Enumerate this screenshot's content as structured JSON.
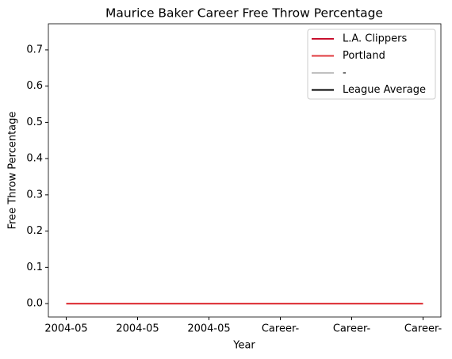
{
  "chart_data": {
    "type": "line",
    "title": "Maurice Baker Career Free Throw Percentage",
    "x_label": "Year",
    "y_label": "Free Throw Percentage",
    "categories": [
      "2004-05",
      "2004-05",
      "2004-05",
      "Career-",
      "Career-",
      "Career-"
    ],
    "series": [
      {
        "name": "L.A. Clippers",
        "color": "#c8102e",
        "values": [
          0,
          0,
          0,
          0,
          0,
          0
        ]
      },
      {
        "name": "Portland",
        "color": "#e03a3e",
        "values": [
          0,
          0,
          0,
          0,
          0,
          0
        ]
      },
      {
        "name": "-",
        "color": "#c0c0c0",
        "values": [
          null,
          null,
          null,
          null,
          null,
          null
        ]
      },
      {
        "name": "League Average",
        "color": "#000000",
        "values": [
          null,
          null,
          null,
          null,
          null,
          null
        ]
      }
    ],
    "ylim": [
      -0.037,
      0.772
    ],
    "yticks": [
      {
        "value": 0,
        "label": "0.0"
      },
      0.1,
      0.2,
      0.3,
      0.4,
      0.5,
      0.6,
      0.7
    ],
    "grid": false,
    "legend": "upper right"
  }
}
